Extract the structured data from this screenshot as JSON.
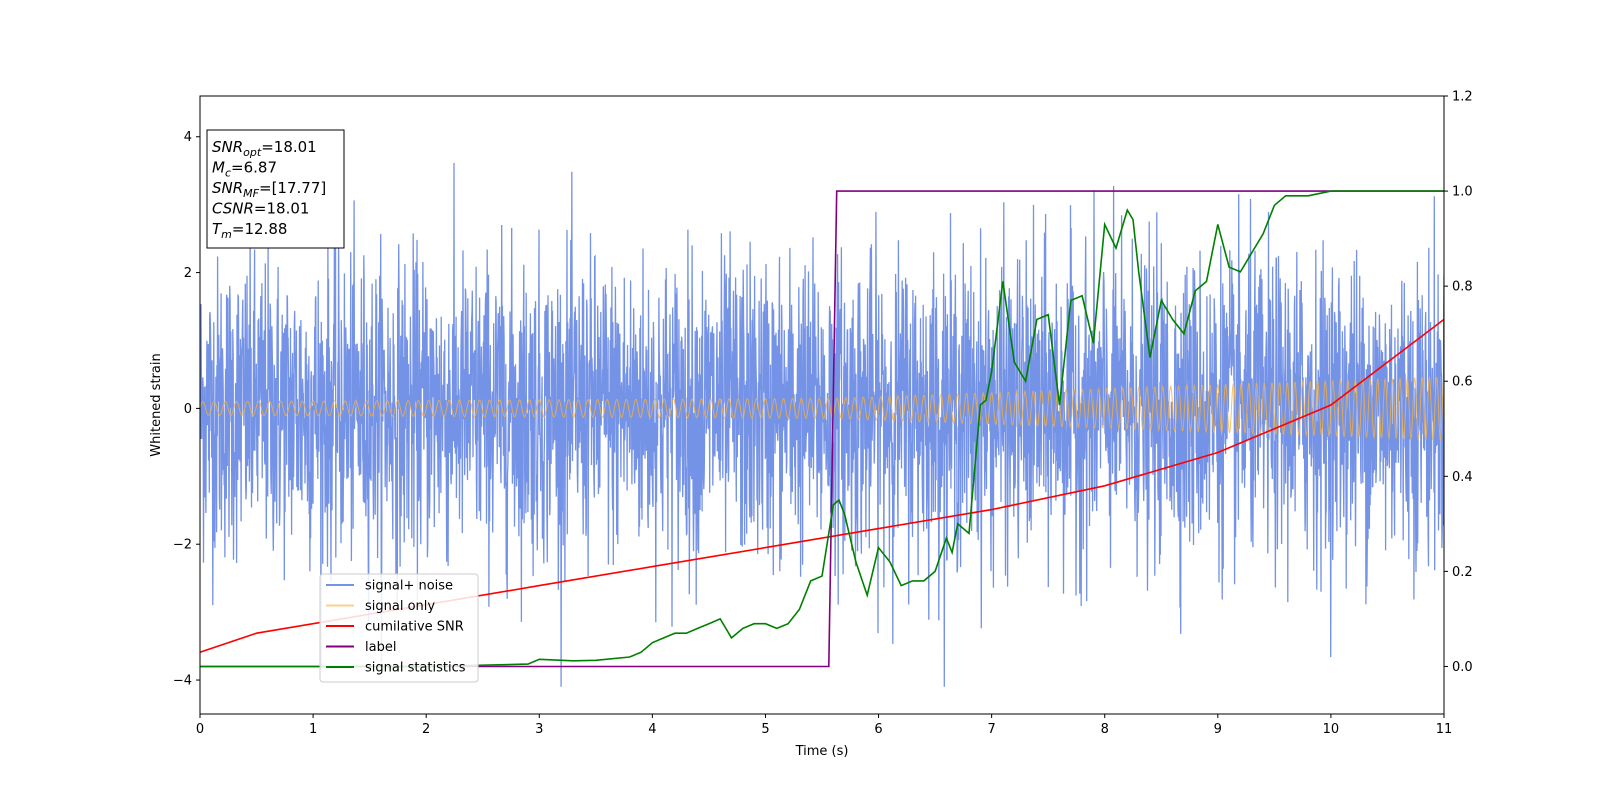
{
  "chart_data": {
    "type": "line",
    "xlabel": "Time (s)",
    "ylabel": "Whitened strain",
    "xlim": [
      0,
      11
    ],
    "ylim": [
      -4.5,
      4.6
    ],
    "y2lim": [
      -0.1,
      1.2
    ],
    "xticks": [
      "0",
      "1",
      "2",
      "3",
      "4",
      "5",
      "6",
      "7",
      "8",
      "9",
      "10",
      "11"
    ],
    "yticks": [
      "−4",
      "−2",
      "0",
      "2",
      "4"
    ],
    "y2ticks": [
      "0.0",
      "0.2",
      "0.4",
      "0.6",
      "0.8",
      "1.0",
      "1.2"
    ],
    "grid": false,
    "legend_position": "lower-left",
    "annotation": [
      {
        "var": "SNR",
        "sub": "opt",
        "value": "=18.01"
      },
      {
        "var": "M",
        "sub": "c",
        "value": "=6.87"
      },
      {
        "var": "SNR",
        "sub": "MF",
        "value": "=[17.77]"
      },
      {
        "var": "CSNR",
        "sub": "",
        "value": "=18.01"
      },
      {
        "var": "T",
        "sub": "m",
        "value": "=12.88"
      }
    ],
    "series": [
      {
        "name": "signal+ noise",
        "axis": "left",
        "color": "#7492e6",
        "envelope": {
          "typical_amplitude": 1.6,
          "max": 4.2,
          "min": -4.1
        }
      },
      {
        "name": "signal only",
        "axis": "left",
        "color": "#f5b041",
        "amplitude": {
          "x": [
            0,
            5.6,
            11
          ],
          "values": [
            0.1,
            0.15,
            0.47
          ]
        }
      },
      {
        "name": "cumilative SNR",
        "axis": "right",
        "color": "#ff0000",
        "x": [
          0,
          0.5,
          1,
          2,
          3,
          4,
          5,
          6,
          7,
          8,
          9,
          10,
          11
        ],
        "values": [
          0.03,
          0.07,
          0.09,
          0.13,
          0.17,
          0.21,
          0.25,
          0.29,
          0.33,
          0.38,
          0.45,
          0.55,
          0.73
        ]
      },
      {
        "name": "label",
        "axis": "right",
        "color": "#800080",
        "x": [
          0,
          5.56,
          5.63,
          11
        ],
        "values": [
          0,
          0,
          1,
          1
        ]
      },
      {
        "name": "signal statistics",
        "axis": "right",
        "color": "#008000",
        "x": [
          0,
          1,
          2,
          2.9,
          3.0,
          3.3,
          3.5,
          3.8,
          3.9,
          4.0,
          4.1,
          4.2,
          4.3,
          4.4,
          4.5,
          4.6,
          4.7,
          4.8,
          4.9,
          5.0,
          5.1,
          5.2,
          5.3,
          5.4,
          5.5,
          5.6,
          5.65,
          5.7,
          5.8,
          5.9,
          6.0,
          6.1,
          6.2,
          6.3,
          6.4,
          6.5,
          6.6,
          6.65,
          6.7,
          6.8,
          6.9,
          6.95,
          7.0,
          7.1,
          7.2,
          7.3,
          7.4,
          7.5,
          7.6,
          7.7,
          7.8,
          7.9,
          8.0,
          8.1,
          8.2,
          8.25,
          8.3,
          8.4,
          8.5,
          8.6,
          8.7,
          8.8,
          8.9,
          9.0,
          9.1,
          9.2,
          9.3,
          9.4,
          9.5,
          9.6,
          9.7,
          9.8,
          10,
          10.5,
          11
        ],
        "values": [
          0.0,
          0.0,
          0.0,
          0.005,
          0.015,
          0.012,
          0.013,
          0.02,
          0.03,
          0.05,
          0.06,
          0.07,
          0.07,
          0.08,
          0.09,
          0.1,
          0.06,
          0.08,
          0.09,
          0.09,
          0.08,
          0.09,
          0.12,
          0.18,
          0.19,
          0.34,
          0.35,
          0.32,
          0.22,
          0.15,
          0.25,
          0.22,
          0.17,
          0.18,
          0.18,
          0.2,
          0.27,
          0.24,
          0.3,
          0.28,
          0.55,
          0.56,
          0.62,
          0.81,
          0.64,
          0.6,
          0.73,
          0.74,
          0.55,
          0.77,
          0.78,
          0.68,
          0.93,
          0.88,
          0.96,
          0.94,
          0.83,
          0.65,
          0.77,
          0.73,
          0.7,
          0.79,
          0.81,
          0.93,
          0.84,
          0.83,
          0.87,
          0.91,
          0.97,
          0.99,
          0.99,
          0.99,
          1.0,
          1.0,
          1.0
        ]
      }
    ]
  }
}
